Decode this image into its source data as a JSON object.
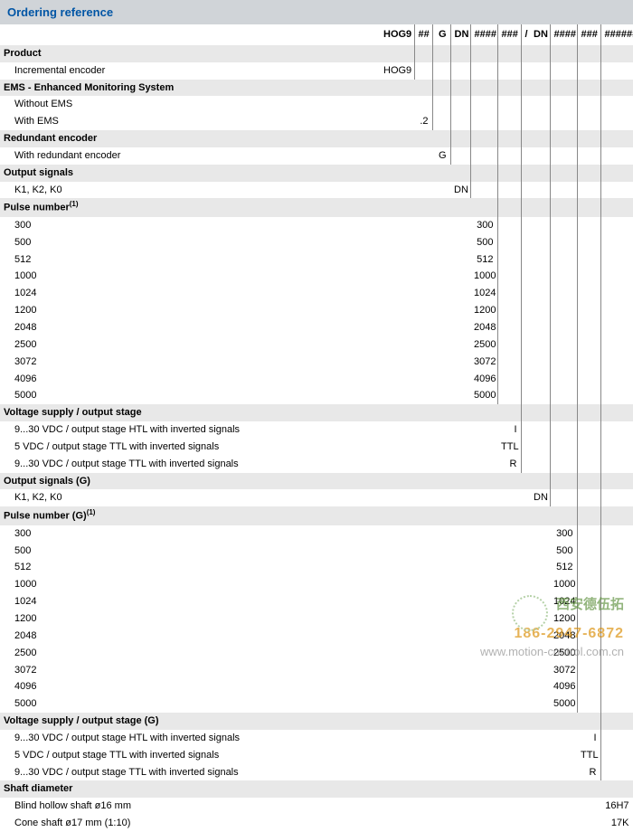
{
  "title": "Ordering reference",
  "header_cols": [
    "HOG9",
    "##",
    "G",
    "DN",
    "####",
    "###",
    "/",
    "DN",
    "####",
    "###",
    "######"
  ],
  "sections": [
    {
      "title": "Product",
      "sup": "",
      "rows": [
        {
          "label": "Incremental encoder",
          "col": 0,
          "value": "HOG9"
        }
      ]
    },
    {
      "title": "EMS - Enhanced Monitoring System",
      "sup": "",
      "rows": [
        {
          "label": "Without EMS",
          "col": 1,
          "value": ""
        },
        {
          "label": "With EMS",
          "col": 1,
          "value": ".2"
        }
      ]
    },
    {
      "title": "Redundant encoder",
      "sup": "",
      "rows": [
        {
          "label": "With redundant encoder",
          "col": 2,
          "value": "G"
        }
      ]
    },
    {
      "title": "Output signals",
      "sup": "",
      "rows": [
        {
          "label": "K1, K2, K0",
          "col": 3,
          "value": "DN"
        }
      ]
    },
    {
      "title": "Pulse number",
      "sup": "(1)",
      "rows": [
        {
          "label": "300",
          "col": 4,
          "value": "300"
        },
        {
          "label": "500",
          "col": 4,
          "value": "500"
        },
        {
          "label": "512",
          "col": 4,
          "value": "512"
        },
        {
          "label": "1000",
          "col": 4,
          "value": "1000"
        },
        {
          "label": "1024",
          "col": 4,
          "value": "1024"
        },
        {
          "label": "1200",
          "col": 4,
          "value": "1200"
        },
        {
          "label": "2048",
          "col": 4,
          "value": "2048"
        },
        {
          "label": "2500",
          "col": 4,
          "value": "2500"
        },
        {
          "label": "3072",
          "col": 4,
          "value": "3072"
        },
        {
          "label": "4096",
          "col": 4,
          "value": "4096"
        },
        {
          "label": "5000",
          "col": 4,
          "value": "5000"
        }
      ]
    },
    {
      "title": "Voltage supply / output stage",
      "sup": "",
      "rows": [
        {
          "label": "9...30 VDC / output stage HTL with inverted signals",
          "col": 5,
          "value": "I"
        },
        {
          "label": "5 VDC / output stage TTL with inverted signals",
          "col": 5,
          "value": "TTL"
        },
        {
          "label": "9...30 VDC / output stage TTL with inverted signals",
          "col": 5,
          "value": "R"
        }
      ]
    },
    {
      "title": "Output signals (G)",
      "sup": "",
      "rows": [
        {
          "label": "K1, K2, K0",
          "col": 7,
          "value": "DN"
        }
      ]
    },
    {
      "title": "Pulse number (G)",
      "sup": "(1)",
      "rows": [
        {
          "label": "300",
          "col": 8,
          "value": "300"
        },
        {
          "label": "500",
          "col": 8,
          "value": "500"
        },
        {
          "label": "512",
          "col": 8,
          "value": "512"
        },
        {
          "label": "1000",
          "col": 8,
          "value": "1000"
        },
        {
          "label": "1024",
          "col": 8,
          "value": "1024"
        },
        {
          "label": "1200",
          "col": 8,
          "value": "1200"
        },
        {
          "label": "2048",
          "col": 8,
          "value": "2048"
        },
        {
          "label": "2500",
          "col": 8,
          "value": "2500"
        },
        {
          "label": "3072",
          "col": 8,
          "value": "3072"
        },
        {
          "label": "4096",
          "col": 8,
          "value": "4096"
        },
        {
          "label": "5000",
          "col": 8,
          "value": "5000"
        }
      ]
    },
    {
      "title": "Voltage supply / output stage (G)",
      "sup": "",
      "rows": [
        {
          "label": "9...30 VDC / output stage HTL with inverted signals",
          "col": 9,
          "value": "I"
        },
        {
          "label": "5 VDC / output stage TTL with inverted signals",
          "col": 9,
          "value": "TTL"
        },
        {
          "label": "9...30 VDC / output stage TTL with inverted signals",
          "col": 9,
          "value": "R"
        }
      ]
    },
    {
      "title": "Shaft diameter",
      "sup": "",
      "rows": [
        {
          "label": "Blind hollow shaft ø16 mm",
          "col": 10,
          "value": "16H7"
        },
        {
          "label": "Cone shaft ø17 mm (1:10)",
          "col": 10,
          "value": "17K"
        }
      ]
    }
  ],
  "watermark": {
    "line1": "西安德伍拓",
    "line2": "186-2947-6872",
    "line3": "www.motion-control.com.cn"
  },
  "colors": {
    "title_bg": "#d0d4d8",
    "title_text": "#0055a5",
    "section_bg": "#e8e8e8",
    "border": "#888"
  }
}
